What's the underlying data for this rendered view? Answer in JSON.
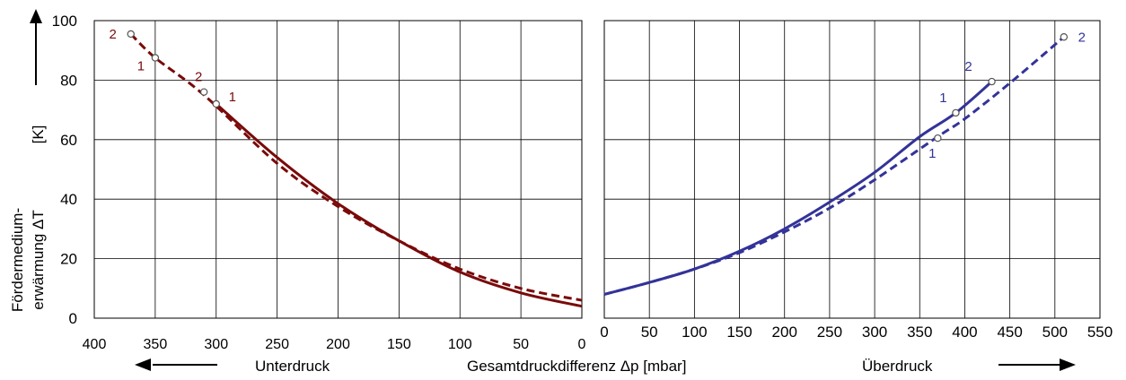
{
  "chart_data": {
    "type": "line",
    "yaxis": {
      "range": [
        0,
        100
      ],
      "ticks": [
        "0",
        "20",
        "40",
        "60",
        "80",
        "100"
      ],
      "label_line1": "Fördermedium-",
      "label_line2": "erwärmung  ΔT",
      "unit": "[K]"
    },
    "xlabel": "Gesamtdruckdifferenz Δp  [mbar]",
    "grid": true,
    "panels": [
      {
        "name": "Unterdruck",
        "side_label": "Unterdruck",
        "xlim": [
          400,
          0
        ],
        "xticks": [
          "400",
          "350",
          "300",
          "250",
          "200",
          "150",
          "100",
          "50",
          "0"
        ],
        "color": "#7a0a0a",
        "series": [
          {
            "name": "solid",
            "dash": "solid",
            "x": [
              300,
              250,
              200,
              150,
              100,
              50,
              0
            ],
            "y": [
              72,
              54,
              38.5,
              26,
              15.5,
              8.5,
              4
            ]
          },
          {
            "name": "dashed",
            "dash": "dashed",
            "x": [
              370,
              350,
              310,
              250,
              200,
              150,
              100,
              50,
              0
            ],
            "y": [
              95.5,
              87.5,
              75,
              52,
              37.5,
              26,
              16.5,
              10,
              6
            ]
          }
        ],
        "markers": [
          {
            "x": 370,
            "y": 95.5,
            "label": "2"
          },
          {
            "x": 350,
            "y": 87.5,
            "label": "1"
          },
          {
            "x": 310,
            "y": 76,
            "label": "2"
          },
          {
            "x": 300,
            "y": 72,
            "label": "1"
          }
        ]
      },
      {
        "name": "Überdruck",
        "side_label": "Überdruck",
        "xlim": [
          0,
          550
        ],
        "xticks": [
          "0",
          "50",
          "100",
          "150",
          "200",
          "250",
          "300",
          "350",
          "400",
          "450",
          "500",
          "550"
        ],
        "color": "#333399",
        "series": [
          {
            "name": "solid",
            "dash": "solid",
            "x": [
              0,
              50,
              100,
              150,
              200,
              250,
              300,
              350,
              390,
              430
            ],
            "y": [
              8,
              12,
              16.5,
              22.5,
              30,
              39,
              49,
              61,
              69,
              79.5
            ]
          },
          {
            "name": "dashed",
            "dash": "dashed",
            "x": [
              0,
              50,
              100,
              150,
              200,
              250,
              300,
              370,
              400,
              450,
              510
            ],
            "y": [
              8,
              12,
              16.5,
              22,
              29,
              37,
              46.5,
              61,
              67,
              79,
              94.5
            ]
          }
        ],
        "markers": [
          {
            "x": 370,
            "y": 60.5,
            "label": "1"
          },
          {
            "x": 390,
            "y": 69,
            "label": "1"
          },
          {
            "x": 430,
            "y": 79.5,
            "label": "2"
          },
          {
            "x": 510,
            "y": 94.5,
            "label": "2"
          }
        ]
      }
    ]
  }
}
